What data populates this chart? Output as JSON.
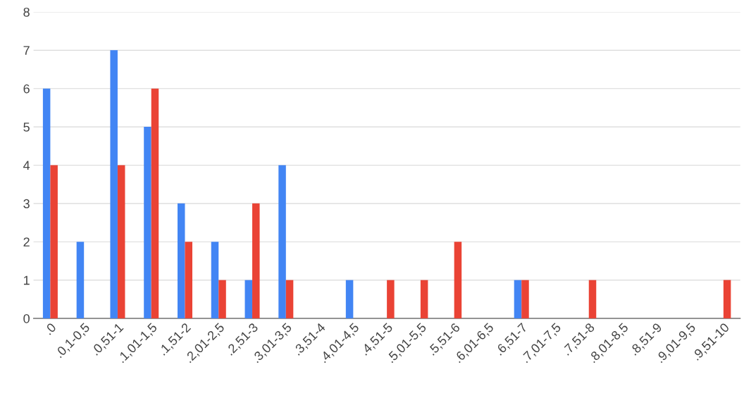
{
  "chart_data": {
    "type": "bar",
    "categories": [
      ".0",
      ".0,1-0,5",
      ".0,51-1",
      ".1,01-1,5",
      ".1,51-2",
      ".2,01-2,5",
      ".2,51-3",
      ".3,01-3,5",
      ".3,51-4",
      ".4,01-4,5",
      ".4,51-5",
      ".5,01-5,5",
      ".5,51-6",
      ".6,01-6,5",
      ".6,51-7",
      ".7,01-7,5",
      ".7,51-8",
      ".8,01-8,5",
      ".8,51-9",
      ".9,01-9,5",
      ".9,51-10"
    ],
    "series": [
      {
        "color": "#4285f4",
        "values": [
          6,
          2,
          7,
          5,
          3,
          2,
          1,
          4,
          0,
          1,
          0,
          0,
          0,
          0,
          1,
          0,
          0,
          0,
          0,
          0,
          0
        ]
      },
      {
        "color": "#ea4335",
        "values": [
          4,
          0,
          4,
          6,
          2,
          1,
          3,
          1,
          0,
          0,
          1,
          1,
          2,
          0,
          1,
          0,
          1,
          0,
          0,
          0,
          1
        ]
      }
    ],
    "ylim": [
      0,
      8
    ],
    "yticks": [
      0,
      1,
      2,
      3,
      4,
      5,
      6,
      7,
      8
    ],
    "grid": "y"
  }
}
